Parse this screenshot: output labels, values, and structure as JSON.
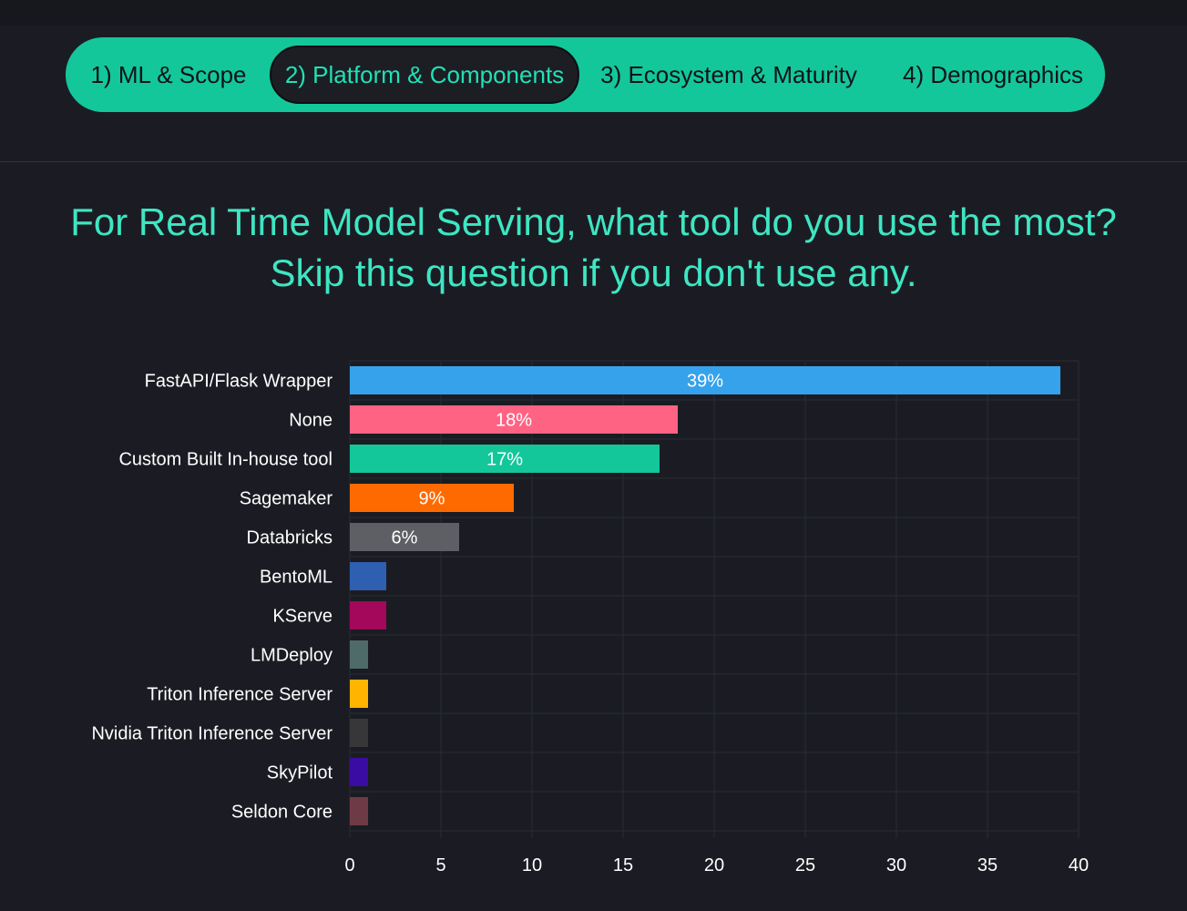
{
  "tabs": [
    {
      "label": "1) ML & Scope",
      "active": false
    },
    {
      "label": "2) Platform & Components",
      "active": true
    },
    {
      "label": "3) Ecosystem & Maturity",
      "active": false
    },
    {
      "label": "4) Demographics",
      "active": false
    }
  ],
  "question": "For Real Time Model Serving, what tool do you use the most? Skip this question if you don't use any.",
  "chart_data": {
    "type": "bar",
    "orientation": "horizontal",
    "title": "",
    "xlabel": "",
    "ylabel": "",
    "xlim": [
      0,
      40
    ],
    "xticks": [
      0,
      5,
      10,
      15,
      20,
      25,
      30,
      35,
      40
    ],
    "grid": true,
    "legend": "none",
    "categories": [
      "FastAPI/Flask Wrapper",
      "None",
      "Custom Built In-house tool",
      "Sagemaker",
      "Databricks",
      "BentoML",
      "KServe",
      "LMDeploy",
      "Triton Inference Server",
      "Nvidia Triton Inference Server",
      "SkyPilot",
      "Seldon Core"
    ],
    "values": [
      39,
      18,
      17,
      9,
      6,
      2,
      2,
      1,
      1,
      1,
      1,
      1
    ],
    "data_labels": [
      "39%",
      "18%",
      "17%",
      "9%",
      "6%",
      "",
      "",
      "",
      "",
      "",
      "",
      ""
    ],
    "colors": [
      "#36a2eb",
      "#ff6384",
      "#13c79b",
      "#ff6a00",
      "#5e5f64",
      "#2e5fb0",
      "#a3085a",
      "#4e6a69",
      "#ffb400",
      "#37373a",
      "#3a0ca3",
      "#6e3a45"
    ]
  },
  "theme": {
    "background": "#1b1c23",
    "accent": "#13c79b",
    "question_color": "#3ee6c3",
    "grid_color": "#2a2c34",
    "label_color": "#ffffff"
  }
}
